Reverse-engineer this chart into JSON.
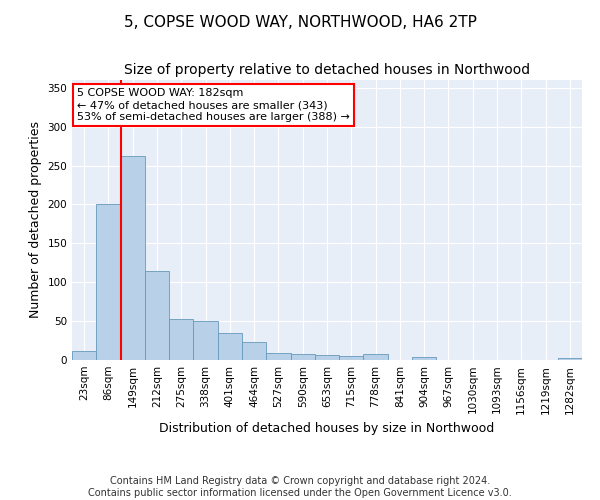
{
  "title": "5, COPSE WOOD WAY, NORTHWOOD, HA6 2TP",
  "subtitle": "Size of property relative to detached houses in Northwood",
  "xlabel": "Distribution of detached houses by size in Northwood",
  "ylabel": "Number of detached properties",
  "categories": [
    "23sqm",
    "86sqm",
    "149sqm",
    "212sqm",
    "275sqm",
    "338sqm",
    "401sqm",
    "464sqm",
    "527sqm",
    "590sqm",
    "653sqm",
    "715sqm",
    "778sqm",
    "841sqm",
    "904sqm",
    "967sqm",
    "1030sqm",
    "1093sqm",
    "1156sqm",
    "1219sqm",
    "1282sqm"
  ],
  "values": [
    11,
    200,
    262,
    115,
    53,
    50,
    35,
    23,
    9,
    8,
    7,
    5,
    8,
    0,
    4,
    0,
    0,
    0,
    0,
    0,
    3
  ],
  "bar_color": "#b8d0e8",
  "bar_edgecolor": "#6699bb",
  "background_color": "#e8eef8",
  "vline_x_index": 2,
  "vline_color": "red",
  "annotation_text": "5 COPSE WOOD WAY: 182sqm\n← 47% of detached houses are smaller (343)\n53% of semi-detached houses are larger (388) →",
  "annotation_box_facecolor": "white",
  "annotation_box_edgecolor": "red",
  "ylim": [
    0,
    360
  ],
  "yticks": [
    0,
    50,
    100,
    150,
    200,
    250,
    300,
    350
  ],
  "footer": "Contains HM Land Registry data © Crown copyright and database right 2024.\nContains public sector information licensed under the Open Government Licence v3.0.",
  "title_fontsize": 11,
  "subtitle_fontsize": 10,
  "label_fontsize": 9,
  "tick_fontsize": 7.5,
  "footer_fontsize": 7,
  "annotation_fontsize": 8
}
